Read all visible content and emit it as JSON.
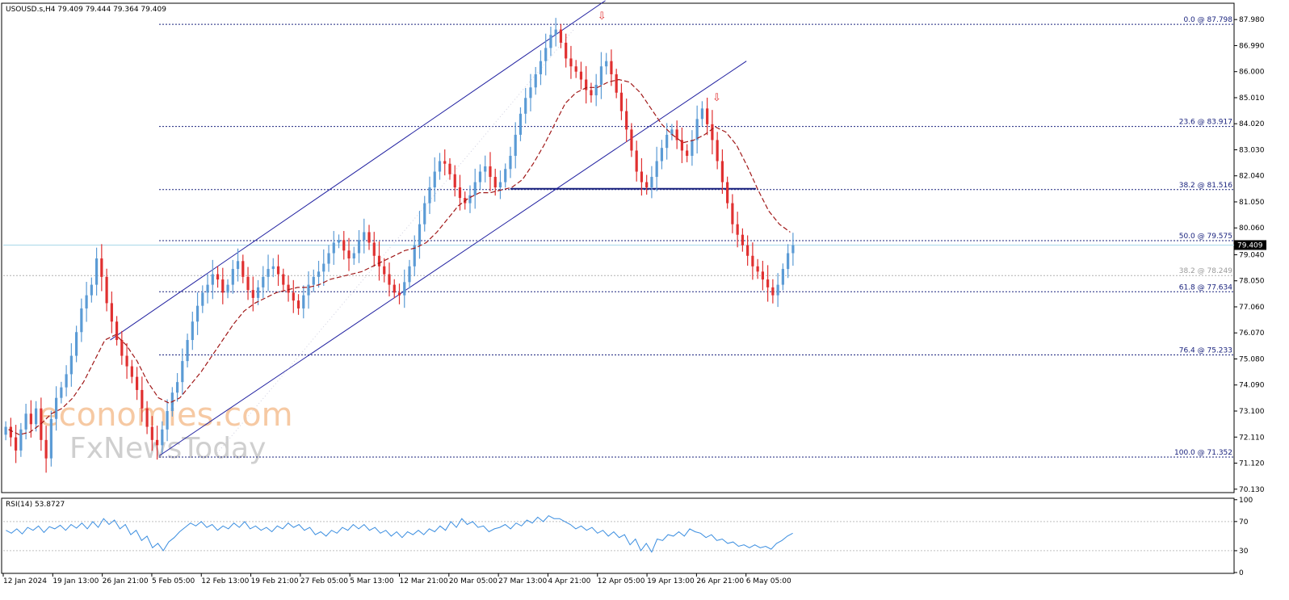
{
  "header": {
    "symbol_info": "USOUSD.s,H4  79.409 79.444 79.364 79.409",
    "rsi_label": "RSI(14) 53.8727"
  },
  "watermark": {
    "line1": "economies.com",
    "line2": "FxNewsToday"
  },
  "colors": {
    "bull": "#5b9bd5",
    "bear": "#e03030",
    "ma": "#a01818",
    "fib": "#1a237e",
    "channel": "#2020a0",
    "rsi": "#3b8ee0",
    "price_line": "#a8d8e8",
    "arrow": "#e03030"
  },
  "chart_data": [
    {
      "type": "candlestick",
      "series": [
        {
          "name": "",
          "values": [
            72.5,
            72.1,
            71.6,
            72.4,
            73.0,
            72.6,
            73.2,
            72.0,
            71.3,
            72.8,
            73.6,
            74.0,
            74.5,
            75.2,
            76.1,
            77.0,
            77.5,
            77.9,
            78.9,
            78.2,
            77.2,
            76.5,
            75.8,
            75.2,
            74.8,
            74.4,
            73.9,
            73.2,
            72.5,
            72.0,
            71.8,
            72.4,
            73.1,
            73.8,
            74.2,
            75.0,
            75.8,
            76.5,
            77.1,
            77.6,
            77.9,
            78.3,
            78.1,
            77.6,
            77.9,
            78.5,
            78.8,
            78.2,
            77.7,
            77.4,
            77.8,
            78.2,
            78.5,
            78.6,
            78.3,
            77.9,
            77.6,
            77.3,
            77.0,
            77.5,
            77.9,
            78.2,
            78.4,
            78.7,
            79.1,
            79.5,
            79.6,
            79.2,
            78.9,
            79.1,
            79.6,
            79.9,
            79.5,
            79.0,
            78.6,
            78.3,
            77.9,
            77.6,
            77.5,
            78.0,
            78.6,
            79.4,
            80.2,
            81.0,
            81.6,
            82.2,
            82.6,
            82.5,
            82.1,
            81.6,
            81.2,
            81.0,
            81.3,
            81.8,
            82.2,
            82.4,
            82.0,
            81.6,
            81.8,
            82.3,
            82.8,
            83.6,
            84.4,
            85.0,
            85.4,
            85.9,
            86.4,
            86.9,
            87.4,
            87.6,
            87.1,
            86.5,
            86.2,
            86.0,
            85.7,
            85.3,
            85.1,
            85.5,
            86.2,
            86.4,
            85.9,
            85.2,
            84.5,
            83.8,
            83.0,
            82.2,
            81.8,
            81.6,
            82.0,
            82.6,
            83.1,
            83.6,
            83.8,
            83.4,
            83.0,
            82.8,
            83.4,
            84.2,
            84.6,
            84.0,
            83.4,
            82.6,
            81.8,
            81.0,
            80.2,
            79.8,
            79.4,
            79.0,
            78.6,
            78.4,
            78.1,
            77.8,
            77.5,
            77.9,
            78.5,
            79.1,
            79.4
          ]
        }
      ],
      "x_tick_labels": [
        "12 Jan 2024",
        "19 Jan 13:00",
        "26 Jan 21:00",
        "5 Feb 05:00",
        "12 Feb 13:00",
        "19 Feb 21:00",
        "27 Feb 05:00",
        "5 Mar 13:00",
        "12 Mar 21:00",
        "20 Mar 05:00",
        "27 Mar 13:00",
        "4 Apr 21:00",
        "12 Apr 05:00",
        "19 Apr 13:00",
        "26 Apr 21:00",
        "6 May 05:00"
      ],
      "y_tick_labels": [
        "87.980",
        "86.990",
        "86.000",
        "85.010",
        "84.020",
        "83.030",
        "82.040",
        "81.050",
        "80.060",
        "79.040",
        "78.050",
        "77.060",
        "76.070",
        "75.080",
        "74.090",
        "73.100",
        "72.110",
        "71.120",
        "70.130"
      ],
      "y_ticks": [
        87.98,
        86.99,
        86.0,
        85.01,
        84.02,
        83.03,
        82.04,
        81.05,
        80.06,
        79.04,
        78.05,
        77.06,
        76.07,
        75.08,
        74.09,
        73.1,
        72.11,
        71.12,
        70.13
      ],
      "ylim": [
        70.0,
        88.6
      ],
      "current_price": 79.409,
      "current_price_label": "79.409",
      "moving_average": {
        "values": [
          72.4,
          72.2,
          72.3,
          72.6,
          73.0,
          73.2,
          73.6,
          74.2,
          75.0,
          75.8,
          76.0,
          75.6,
          75.0,
          74.2,
          73.6,
          73.4,
          73.6,
          74.1,
          74.6,
          75.2,
          75.8,
          76.4,
          76.9,
          77.2,
          77.4,
          77.6,
          77.7,
          77.8,
          77.8,
          77.9,
          78.1,
          78.2,
          78.3,
          78.4,
          78.6,
          78.8,
          79.0,
          79.2,
          79.3,
          79.5,
          79.9,
          80.4,
          80.9,
          81.2,
          81.4,
          81.4,
          81.5,
          81.6,
          81.9,
          82.5,
          83.2,
          84.0,
          84.8,
          85.2,
          85.4,
          85.4,
          85.6,
          85.7,
          85.6,
          85.2,
          84.6,
          84.0,
          83.6,
          83.3,
          83.4,
          83.6,
          83.9,
          83.7,
          83.2,
          82.4,
          81.5,
          80.7,
          80.2,
          79.9
        ]
      },
      "fibonacci_levels": [
        {
          "label": "0.0 @ 87.798",
          "value": 87.798
        },
        {
          "label": "23.6 @ 83.917",
          "value": 83.917
        },
        {
          "label": "38.2 @ 81.516",
          "value": 81.516
        },
        {
          "label": "50.0 @ 79.575",
          "value": 79.575
        },
        {
          "label": "61.8 @ 77.634",
          "value": 77.634
        },
        {
          "label": "76.4 @ 75.233",
          "value": 75.233
        },
        {
          "label": "100.0 @ 71.352",
          "value": 71.352
        }
      ],
      "secondary_fib": {
        "label": "38.2 @ 78.249",
        "value": 78.249
      },
      "horizontal_support": {
        "value": 81.55
      },
      "channel": {
        "upper": [
          [
            75.8,
            88.7
          ],
          [
            80.3,
            83.2
          ]
        ],
        "lower": [
          [
            71.4,
            86.4
          ],
          [
            75.4,
            82.0
          ]
        ]
      },
      "arrows": [
        {
          "value": 87.8
        },
        {
          "value": 84.7
        }
      ],
      "grid": false
    },
    {
      "type": "line",
      "series": [
        {
          "name": "RSI(14)",
          "values": [
            58,
            54,
            60,
            53,
            62,
            58,
            64,
            55,
            63,
            60,
            65,
            58,
            66,
            61,
            68,
            60,
            70,
            62,
            74,
            66,
            72,
            60,
            66,
            52,
            58,
            44,
            50,
            34,
            40,
            30,
            42,
            48,
            56,
            62,
            68,
            64,
            70,
            62,
            66,
            58,
            64,
            60,
            68,
            62,
            70,
            60,
            64,
            58,
            62,
            56,
            64,
            60,
            68,
            62,
            66,
            58,
            62,
            52,
            56,
            50,
            58,
            54,
            62,
            58,
            66,
            60,
            66,
            58,
            62,
            54,
            58,
            50,
            56,
            48,
            56,
            52,
            58,
            52,
            60,
            56,
            64,
            58,
            70,
            62,
            74,
            66,
            70,
            62,
            64,
            56,
            60,
            62,
            66,
            60,
            68,
            64,
            72,
            68,
            76,
            70,
            78,
            74,
            74,
            70,
            66,
            60,
            64,
            58,
            62,
            54,
            58,
            50,
            56,
            48,
            52,
            38,
            46,
            30,
            40,
            28,
            46,
            44,
            52,
            50,
            56,
            50,
            60,
            56,
            54,
            48,
            52,
            44,
            46,
            40,
            42,
            36,
            38,
            34,
            38,
            34,
            36,
            32,
            40,
            44,
            50,
            54
          ]
        }
      ],
      "ylim": [
        0,
        100
      ],
      "y_tick_labels": [
        "100",
        "70",
        "30",
        "0"
      ],
      "y_ticks": [
        100,
        70,
        30,
        0
      ],
      "levels": [
        70,
        30
      ]
    }
  ]
}
